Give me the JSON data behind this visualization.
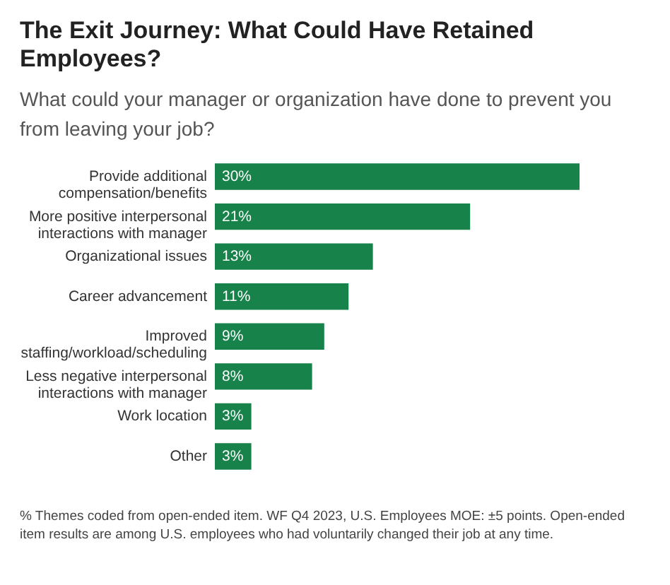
{
  "chart_data": {
    "type": "bar",
    "orientation": "horizontal",
    "title": "The Exit Journey: What Could Have Retained Employees?",
    "subtitle": "What could your manager or organization have done to prevent you from leaving your job?",
    "categories": [
      "Provide additional\ncompensation/benefits",
      "More positive interpersonal\ninteractions with manager",
      "Organizational issues",
      "Career advancement",
      "Improved\nstaffing/workload/scheduling",
      "Less negative interpersonal\ninteractions with manager",
      "Work location",
      "Other"
    ],
    "values": [
      30,
      21,
      13,
      11,
      9,
      8,
      3,
      3
    ],
    "value_labels": [
      "30%",
      "21%",
      "13%",
      "11%",
      "9%",
      "8%",
      "3%",
      "3%"
    ],
    "color": "#17824a",
    "annotations": [
      "% Themes coded from open-ended item. WF Q4 2023, U.S. Employees MOE: ±5 points. Open-ended item results are among U.S. employees who had voluntarily changed their job at any time."
    ]
  }
}
